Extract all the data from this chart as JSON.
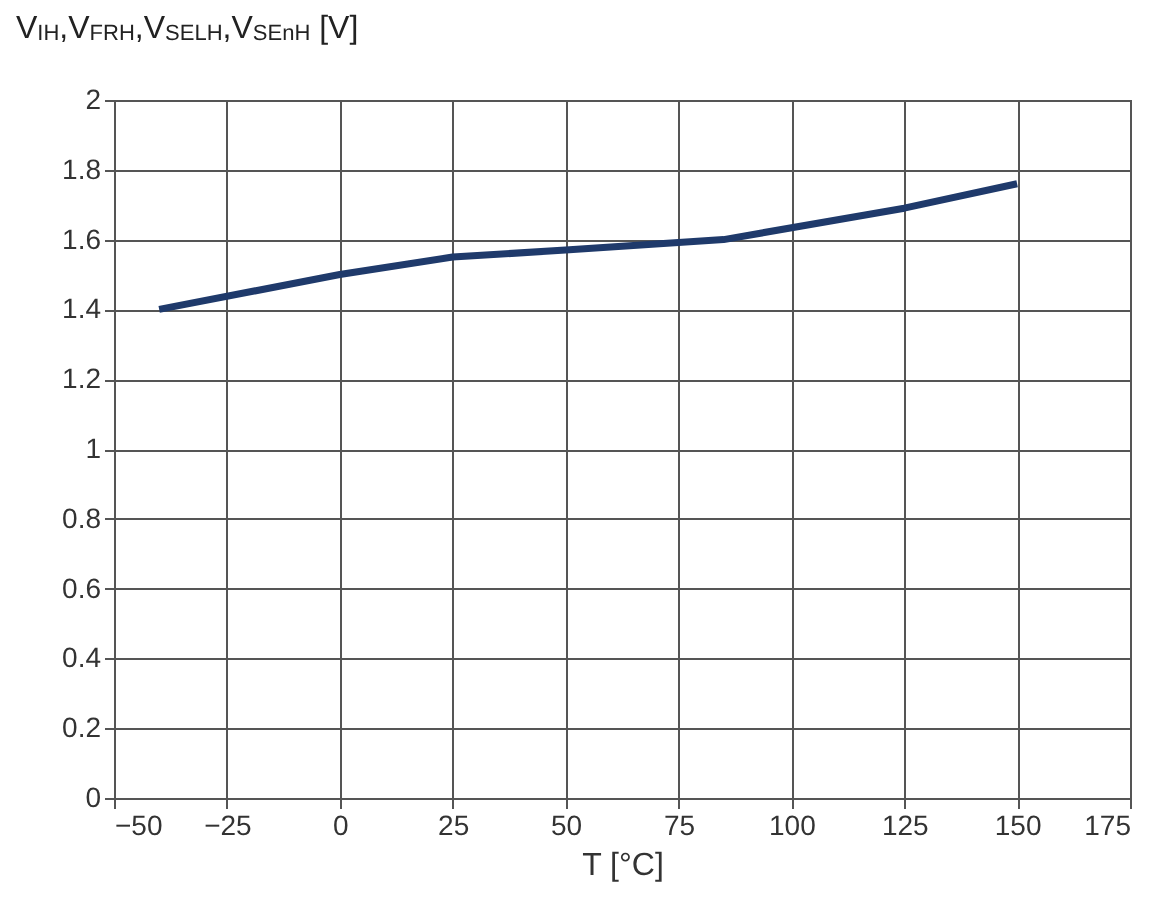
{
  "chart_data": {
    "type": "line",
    "ylabel": "V$_{IH}$,V$_{FRH}$,V$_{SELH}$,V$_{SEnH}$ [V]",
    "xlabel": "T [°C]",
    "x": [
      -40,
      0,
      25,
      50,
      85,
      125,
      150
    ],
    "series": [
      {
        "color": "#1f3a6b",
        "values": [
          1.4,
          1.5,
          1.55,
          1.57,
          1.6,
          1.69,
          1.76
        ]
      }
    ],
    "xlim": [
      -50,
      175
    ],
    "xticks": [
      -50,
      -25,
      0,
      25,
      50,
      75,
      100,
      125,
      150,
      175
    ],
    "ylim": [
      0,
      2
    ],
    "yticks": [
      0,
      0.2,
      0.4,
      0.6,
      0.8,
      1,
      1.2,
      1.4,
      1.6,
      1.8,
      2
    ],
    "grid": true,
    "legend": false,
    "marker": "none",
    "line_style": "solid"
  }
}
